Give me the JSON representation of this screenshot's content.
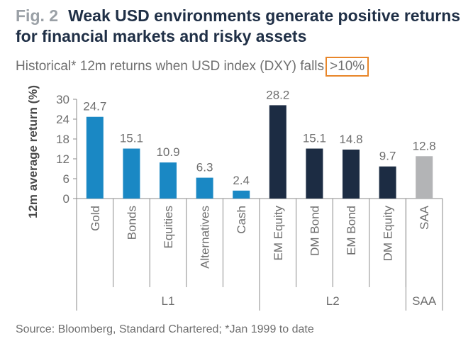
{
  "header": {
    "fig_label": "Fig. 2",
    "title": "Weak USD environments generate positive returns for financial markets and risky assets",
    "subtitle_prefix": "Historical* 12m returns when USD index (DXY) falls",
    "subtitle_highlight": ">10%",
    "highlight_color": "#e8862a"
  },
  "chart_data": {
    "type": "bar",
    "ylabel": "12m average return (%)",
    "ylim": [
      0,
      30
    ],
    "yticks": [
      "0",
      "6",
      "12",
      "18",
      "24",
      "30"
    ],
    "grid": false,
    "categories": [
      "Gold",
      "Bonds",
      "Equities",
      "Alternatives",
      "Cash",
      "EM Equity",
      "DM Bond",
      "EM Bond",
      "DM Equity",
      "SAA"
    ],
    "values": [
      24.7,
      15.1,
      10.9,
      6.3,
      2.4,
      28.2,
      15.1,
      14.8,
      9.7,
      12.8
    ],
    "value_labels": [
      "24.7",
      "15.1",
      "10.9",
      "6.3",
      "2.4",
      "28.2",
      "15.1",
      "14.8",
      "9.7",
      "12.8"
    ],
    "groups": [
      {
        "label": "L1",
        "count": 5,
        "color": "#1a88c4"
      },
      {
        "label": "L2",
        "count": 4,
        "color": "#1c2c43"
      },
      {
        "label": "SAA",
        "count": 1,
        "color": "#b3b4b6"
      }
    ]
  },
  "footer": {
    "source": "Source: Bloomberg, Standard Chartered; *Jan 1999 to date"
  }
}
